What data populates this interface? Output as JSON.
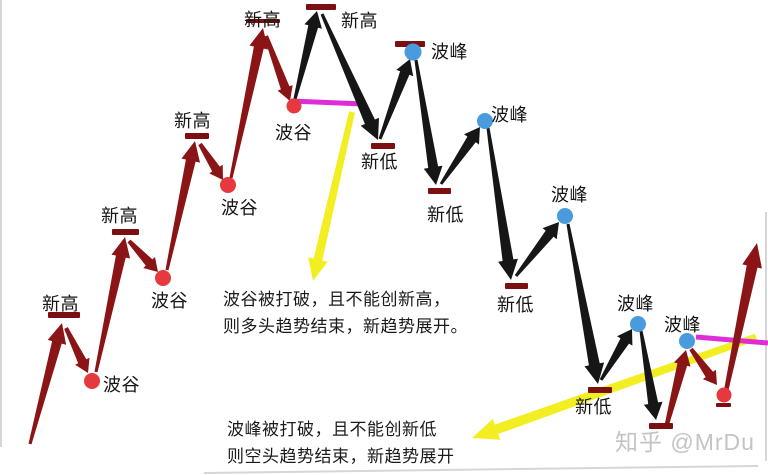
{
  "labels": {
    "new_high": "新高",
    "trough": "波谷",
    "peak": "波峰",
    "new_low": "新低"
  },
  "annotations": {
    "bull_end": {
      "line1": "波谷被打破，且不能创新高，",
      "line2": "则多头趋势结束，新趋势展开。"
    },
    "bear_end": {
      "line1": "波峰被打破，且不能创新低",
      "line2": "则空头趋势结束，新趋势展开"
    }
  },
  "watermark": {
    "text": "知乎 @MrDu"
  },
  "colors": {
    "dark_red": "#8a1416",
    "bar_red": "#7a1012",
    "dot_red": "#e6383f",
    "dot_blue": "#4a9ade",
    "black": "#161616",
    "magenta": "#dd2cd8",
    "yellow": "#f2ee22",
    "border_gray": "#d6d6d6",
    "text_black": "#1b1b1b",
    "watermark_gray": "#c4c4c4"
  }
}
